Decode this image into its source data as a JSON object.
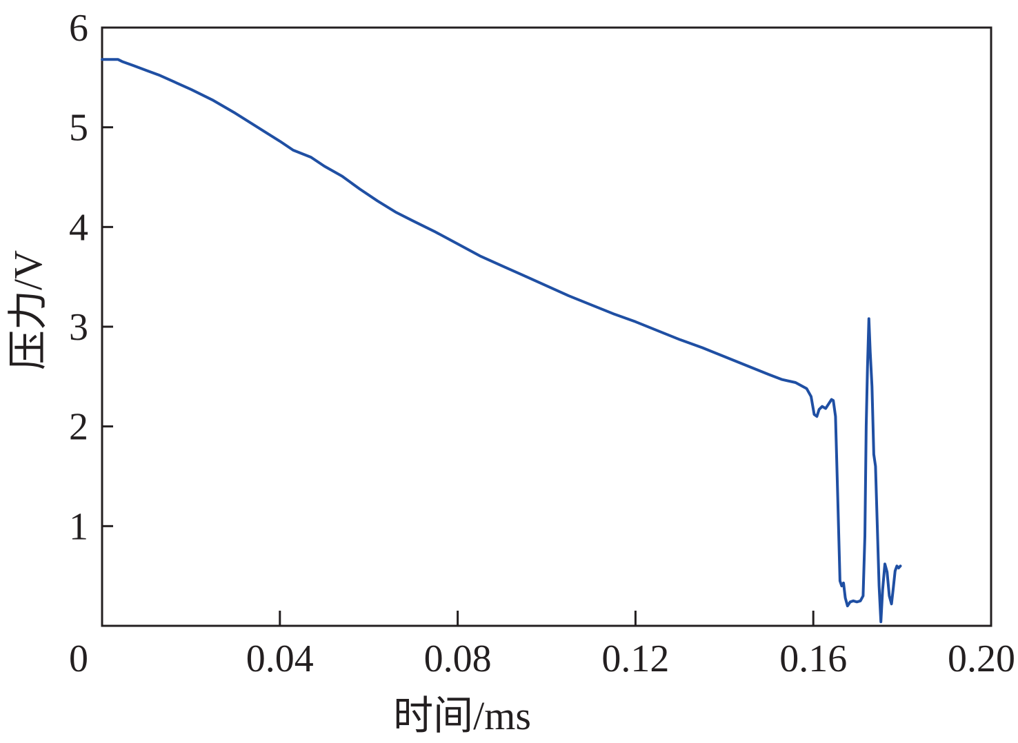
{
  "chart_data": {
    "type": "line",
    "xlabel": "时间/ms",
    "ylabel": "压力/V",
    "xlim": [
      0,
      0.2
    ],
    "ylim": [
      0,
      6
    ],
    "xticks": [
      0,
      0.04,
      0.08,
      0.12,
      0.16,
      0.2
    ],
    "xtick_labels": [
      "0",
      "0.04",
      "0.08",
      "0.12",
      "0.16",
      "0.20"
    ],
    "yticks": [
      1,
      2,
      3,
      4,
      5,
      6
    ],
    "ytick_labels": [
      "1",
      "2",
      "3",
      "4",
      "5",
      "6"
    ],
    "grid": false,
    "line_color": "#1f4fa3",
    "series": [
      {
        "x": [
          0,
          0.0036,
          0.0045,
          0.007,
          0.01,
          0.013,
          0.016,
          0.02,
          0.025,
          0.03,
          0.035,
          0.04,
          0.043,
          0.047,
          0.05,
          0.054,
          0.058,
          0.062,
          0.066,
          0.07,
          0.075,
          0.08,
          0.085,
          0.09,
          0.095,
          0.1,
          0.105,
          0.11,
          0.115,
          0.12,
          0.125,
          0.13,
          0.135,
          0.14,
          0.145,
          0.15,
          0.153,
          0.156,
          0.1585,
          0.1595,
          0.1602,
          0.1608,
          0.1613,
          0.162,
          0.1628,
          0.1635,
          0.1641,
          0.1645,
          0.165,
          0.1655,
          0.166,
          0.1664,
          0.1668,
          0.1672,
          0.1677,
          0.1683,
          0.169,
          0.1698,
          0.1706,
          0.1712,
          0.1716,
          0.1719,
          0.1722,
          0.1725,
          0.1728,
          0.1732,
          0.1736,
          0.174,
          0.1744,
          0.1748,
          0.1752,
          0.1756,
          0.1761,
          0.1766,
          0.1771,
          0.1776,
          0.178,
          0.1784,
          0.1788,
          0.1792,
          0.1796
        ],
        "y": [
          5.68,
          5.68,
          5.66,
          5.62,
          5.57,
          5.52,
          5.46,
          5.38,
          5.27,
          5.14,
          5.0,
          4.86,
          4.77,
          4.7,
          4.61,
          4.51,
          4.38,
          4.26,
          4.15,
          4.06,
          3.95,
          3.83,
          3.71,
          3.61,
          3.51,
          3.41,
          3.31,
          3.22,
          3.13,
          3.05,
          2.96,
          2.87,
          2.79,
          2.7,
          2.61,
          2.52,
          2.47,
          2.44,
          2.38,
          2.3,
          2.12,
          2.1,
          2.17,
          2.2,
          2.18,
          2.23,
          2.27,
          2.26,
          2.1,
          1.3,
          0.45,
          0.4,
          0.43,
          0.28,
          0.2,
          0.24,
          0.25,
          0.24,
          0.25,
          0.3,
          0.9,
          2.0,
          2.6,
          3.08,
          2.75,
          2.4,
          1.72,
          1.6,
          1.0,
          0.4,
          0.04,
          0.36,
          0.62,
          0.54,
          0.3,
          0.22,
          0.38,
          0.55,
          0.6,
          0.58,
          0.6
        ]
      }
    ]
  }
}
